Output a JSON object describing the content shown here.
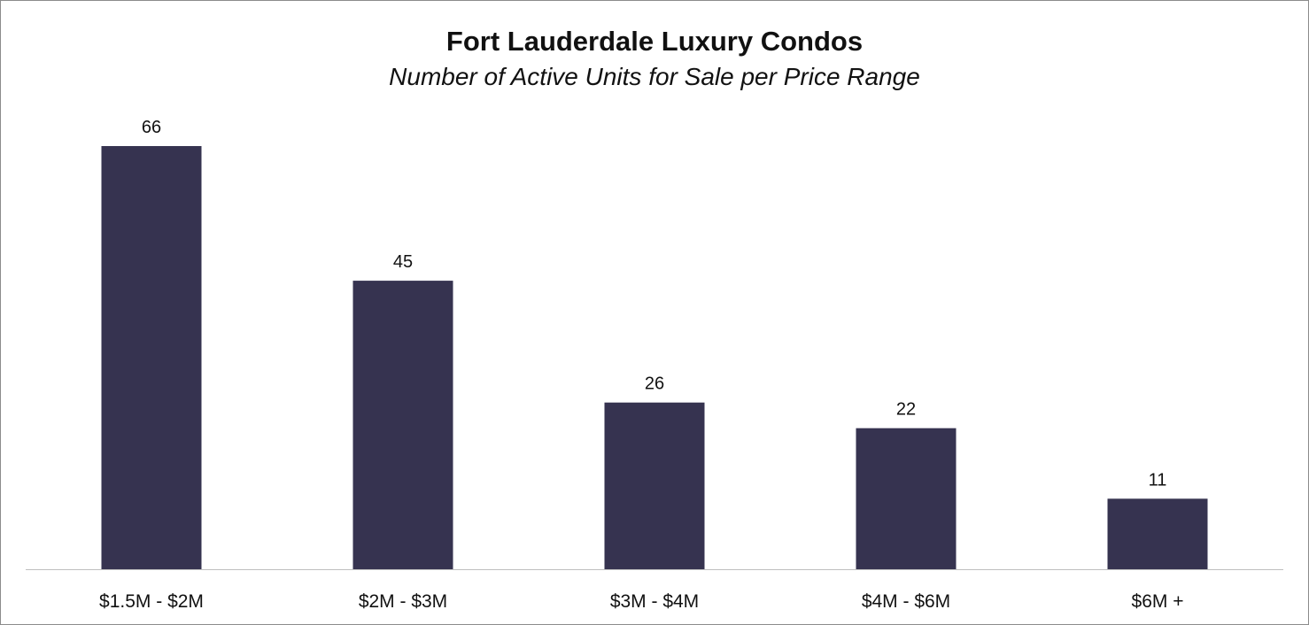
{
  "chart_data": {
    "type": "bar",
    "title": "Fort Lauderdale Luxury Condos",
    "subtitle": "Number of Active Units for Sale per Price Range",
    "categories": [
      "$1.5M - $2M",
      "$2M - $3M",
      "$3M - $4M",
      "$4M - $6M",
      "$6M +"
    ],
    "values": [
      66,
      45,
      26,
      22,
      11
    ],
    "data_labels": [
      "66",
      "45",
      "26",
      "22",
      "11"
    ],
    "xlabel": "",
    "ylabel": "",
    "ylim": [
      0,
      66
    ],
    "grid": false,
    "legend": "none",
    "bar_color": "#363350",
    "axis_color": "#bfbfbf"
  }
}
